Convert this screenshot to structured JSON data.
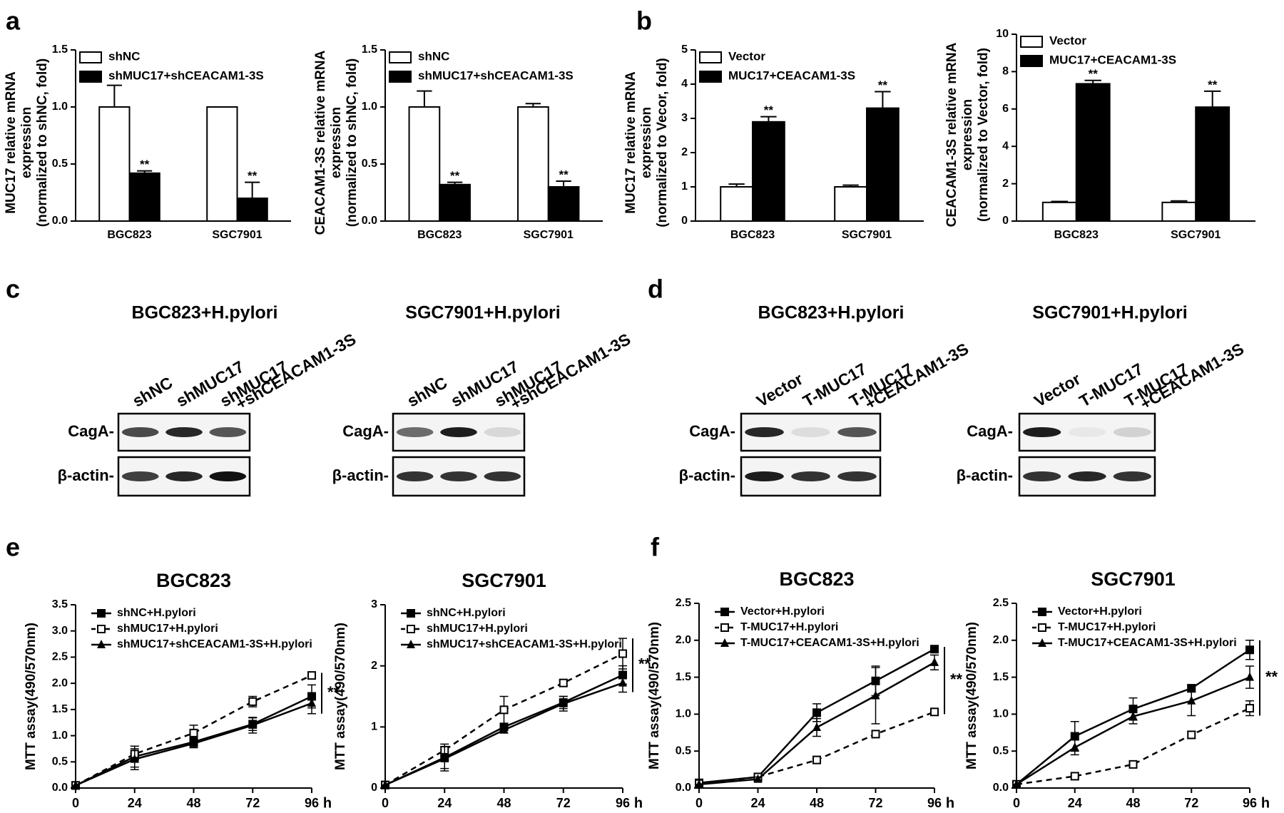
{
  "panel_labels": [
    "a",
    "b",
    "c",
    "d",
    "e",
    "f"
  ],
  "chart_data": [
    {
      "type": "bar",
      "ylabel": [
        "MUC17 relative mRNA",
        "expression",
        "(normalized to shNC, fold)"
      ],
      "categories": [
        "BGC823",
        "SGC7901"
      ],
      "ylim": [
        0,
        1.5
      ],
      "yticks": [
        {
          "value": 0,
          "label": "0.0"
        },
        0.5,
        {
          "value": 1,
          "label": "1.0"
        },
        1.5
      ],
      "series": [
        {
          "name": "shNC",
          "color": "#ffffff",
          "values": [
            1.0,
            1.0
          ],
          "errors": [
            0.19,
            0.0
          ]
        },
        {
          "name": "shMUC17+shCEACAM1-3S",
          "color": "#000000",
          "values": [
            0.42,
            0.2
          ],
          "errors": [
            0.02,
            0.14
          ],
          "marks": [
            "**",
            "**"
          ]
        }
      ]
    },
    {
      "type": "bar",
      "ylabel": [
        "CEACAM1-3S relative mRNA",
        "expression",
        "(normalized to shNC, fold)"
      ],
      "categories": [
        "BGC823",
        "SGC7901"
      ],
      "ylim": [
        0,
        1.5
      ],
      "yticks": [
        {
          "value": 0,
          "label": "0.0"
        },
        0.5,
        {
          "value": 1,
          "label": "1.0"
        },
        1.5
      ],
      "series": [
        {
          "name": "shNC",
          "color": "#ffffff",
          "values": [
            1.0,
            1.0
          ],
          "errors": [
            0.14,
            0.03
          ]
        },
        {
          "name": "shMUC17+shCEACAM1-3S",
          "color": "#000000",
          "values": [
            0.32,
            0.3
          ],
          "errors": [
            0.02,
            0.05
          ],
          "marks": [
            "**",
            "**"
          ]
        }
      ]
    },
    {
      "type": "bar",
      "ylabel": [
        "MUC17 relative mRNA",
        "expression",
        "(normalized to Vecor, fold)"
      ],
      "categories": [
        "BGC823",
        "SGC7901"
      ],
      "ylim": [
        0,
        5
      ],
      "yticks": [
        0,
        1,
        2,
        3,
        4,
        5
      ],
      "series": [
        {
          "name": "Vector",
          "color": "#ffffff",
          "values": [
            1.0,
            1.0
          ],
          "errors": [
            0.08,
            0.05
          ]
        },
        {
          "name": "MUC17+CEACAM1-3S",
          "color": "#000000",
          "values": [
            2.9,
            3.3
          ],
          "errors": [
            0.15,
            0.48
          ],
          "marks": [
            "**",
            "**"
          ]
        }
      ]
    },
    {
      "type": "bar",
      "ylabel": [
        "CEACAM1-3S relative mRNA",
        "expression",
        "(normalized to Vector, fold)"
      ],
      "categories": [
        "BGC823",
        "SGC7901"
      ],
      "ylim": [
        0,
        10
      ],
      "yticks": [
        0,
        2,
        4,
        6,
        8,
        10
      ],
      "series": [
        {
          "name": "Vector",
          "color": "#ffffff",
          "values": [
            1.0,
            1.0
          ],
          "errors": [
            0.05,
            0.08
          ]
        },
        {
          "name": "MUC17+CEACAM1-3S",
          "color": "#000000",
          "values": [
            7.35,
            6.1
          ],
          "errors": [
            0.18,
            0.85
          ],
          "marks": [
            "**",
            "**"
          ]
        }
      ]
    },
    {
      "type": "line",
      "title": "BGC823",
      "ylabel": "MTT assay(490/570nm)",
      "x": [
        0,
        24,
        48,
        72,
        96
      ],
      "xlim": [
        0,
        96
      ],
      "xticks": [
        0,
        24,
        48,
        72,
        96
      ],
      "xunit": "h",
      "ylim": [
        0,
        3.5
      ],
      "yticks": [
        {
          "value": 0,
          "label": "0.0"
        },
        0.5,
        {
          "value": 1,
          "label": "1.0"
        },
        1.5,
        {
          "value": 2,
          "label": "2.0"
        },
        2.5,
        {
          "value": 3,
          "label": "3.0"
        },
        3.5
      ],
      "annotation": "**",
      "series": [
        {
          "name": "shNC+H.pylori",
          "color": "#000000",
          "marker": "square",
          "dashed": false,
          "values": [
            0.05,
            0.6,
            0.88,
            1.22,
            1.75
          ],
          "errors": [
            0,
            0.2,
            0.08,
            0.12,
            0.22
          ]
        },
        {
          "name": "shMUC17+H.pylori",
          "color": "#000000",
          "marker": "open-square",
          "dashed": true,
          "values": [
            0.05,
            0.65,
            1.05,
            1.65,
            2.15
          ],
          "errors": [
            0,
            0.15,
            0.15,
            0.1,
            0.05
          ]
        },
        {
          "name": "shMUC17+shCEACAM1-3S+H.pylori",
          "color": "#000000",
          "marker": "triangle",
          "dashed": false,
          "values": [
            0.05,
            0.55,
            0.85,
            1.2,
            1.62
          ],
          "errors": [
            0,
            0.2,
            0.08,
            0.15,
            0.2
          ]
        }
      ]
    },
    {
      "type": "line",
      "title": "SGC7901",
      "ylabel": "MTT assay(490/570nm)",
      "x": [
        0,
        24,
        48,
        72,
        96
      ],
      "xlim": [
        0,
        96
      ],
      "xticks": [
        0,
        24,
        48,
        72,
        96
      ],
      "xunit": "h",
      "ylim": [
        0,
        3
      ],
      "yticks": [
        0,
        1,
        2,
        3
      ],
      "annotation": "**",
      "series": [
        {
          "name": "shNC+H.pylori",
          "color": "#000000",
          "marker": "square",
          "dashed": false,
          "values": [
            0.05,
            0.5,
            1.0,
            1.4,
            1.85
          ],
          "errors": [
            0,
            0.18,
            0.05,
            0.1,
            0.15
          ]
        },
        {
          "name": "shMUC17+H.pylori",
          "color": "#000000",
          "marker": "open-square",
          "dashed": true,
          "values": [
            0.05,
            0.62,
            1.28,
            1.72,
            2.2
          ],
          "errors": [
            0,
            0.1,
            0.22,
            0.05,
            0.25
          ]
        },
        {
          "name": "shMUC17+shCEACAM1-3S+H.pylori",
          "color": "#000000",
          "marker": "triangle",
          "dashed": false,
          "values": [
            0.05,
            0.48,
            0.95,
            1.38,
            1.72
          ],
          "errors": [
            0,
            0.2,
            0.05,
            0.12,
            0.15
          ]
        }
      ]
    },
    {
      "type": "line",
      "title": "BGC823",
      "ylabel": "MTT assay(490/570nm)",
      "x": [
        0,
        24,
        48,
        72,
        96
      ],
      "xlim": [
        0,
        96
      ],
      "xticks": [
        0,
        24,
        48,
        72,
        96
      ],
      "xunit": "h",
      "ylim": [
        0,
        2.5
      ],
      "yticks": [
        {
          "value": 0,
          "label": "0.0"
        },
        0.5,
        {
          "value": 1,
          "label": "1.0"
        },
        1.5,
        {
          "value": 2,
          "label": "2.0"
        },
        2.5
      ],
      "annotation": "**",
      "series": [
        {
          "name": "Vector+H.pylori",
          "color": "#000000",
          "marker": "square",
          "dashed": false,
          "values": [
            0.07,
            0.15,
            1.02,
            1.45,
            1.88
          ],
          "errors": [
            0,
            0.03,
            0.12,
            0.2,
            0.03
          ]
        },
        {
          "name": "T-MUC17+H.pylori",
          "color": "#000000",
          "marker": "open-square",
          "dashed": true,
          "values": [
            0.06,
            0.15,
            0.38,
            0.73,
            1.03
          ],
          "errors": [
            0,
            0.03,
            0.05,
            0.04,
            0.03
          ]
        },
        {
          "name": "T-MUC17+CEACAM1-3S+H.pylori",
          "color": "#000000",
          "marker": "triangle",
          "dashed": false,
          "values": [
            0.05,
            0.12,
            0.82,
            1.25,
            1.7
          ],
          "errors": [
            0,
            0.03,
            0.12,
            0.38,
            0.1
          ]
        }
      ]
    },
    {
      "type": "line",
      "title": "SGC7901",
      "ylabel": "MTT assay(490/570nm)",
      "x": [
        0,
        24,
        48,
        72,
        96
      ],
      "xlim": [
        0,
        96
      ],
      "xticks": [
        0,
        24,
        48,
        72,
        96
      ],
      "xunit": "h",
      "ylim": [
        0,
        2.5
      ],
      "yticks": [
        {
          "value": 0,
          "label": "0.0"
        },
        0.5,
        {
          "value": 1,
          "label": "1.0"
        },
        1.5,
        {
          "value": 2,
          "label": "2.0"
        },
        2.5
      ],
      "annotation": "**",
      "series": [
        {
          "name": "Vector+H.pylori",
          "color": "#000000",
          "marker": "square",
          "dashed": false,
          "values": [
            0.05,
            0.7,
            1.07,
            1.35,
            1.87
          ],
          "errors": [
            0,
            0.2,
            0.15,
            0.05,
            0.13
          ]
        },
        {
          "name": "T-MUC17+H.pylori",
          "color": "#000000",
          "marker": "open-square",
          "dashed": true,
          "values": [
            0.05,
            0.16,
            0.32,
            0.72,
            1.08
          ],
          "errors": [
            0,
            0.02,
            0.03,
            0.05,
            0.1
          ]
        },
        {
          "name": "T-MUC17+CEACAM1-3S+H.pylori",
          "color": "#000000",
          "marker": "triangle",
          "dashed": false,
          "values": [
            0.05,
            0.55,
            0.97,
            1.18,
            1.5
          ],
          "errors": [
            0,
            0.1,
            0.1,
            0.2,
            0.15
          ]
        }
      ]
    }
  ],
  "blots": [
    {
      "title": "BGC823+H.pylori",
      "lanes": [
        [
          "shNC"
        ],
        [
          "shMUC17"
        ],
        [
          "shMUC17",
          "+shCEACAM1-3S"
        ]
      ],
      "rows": [
        "CagA-",
        "β-actin-"
      ]
    },
    {
      "title": "SGC7901+H.pylori",
      "lanes": [
        [
          "shNC"
        ],
        [
          "shMUC17"
        ],
        [
          "shMUC17",
          "+shCEACAM1-3S"
        ]
      ],
      "rows": [
        "CagA-",
        "β-actin-"
      ]
    },
    {
      "title": "BGC823+H.pylori",
      "lanes": [
        [
          "Vector"
        ],
        [
          "T-MUC17"
        ],
        [
          "T-MUC17",
          "+CEACAM1-3S"
        ]
      ],
      "rows": [
        "CagA-",
        "β-actin-"
      ]
    },
    {
      "title": "SGC7901+H.pylori",
      "lanes": [
        [
          "Vector"
        ],
        [
          "T-MUC17"
        ],
        [
          "T-MUC17",
          "+CEACAM1-3S"
        ]
      ],
      "rows": [
        "CagA-",
        "β-actin-"
      ]
    }
  ]
}
